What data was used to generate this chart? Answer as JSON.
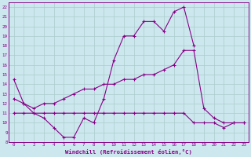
{
  "xlabel": "Windchill (Refroidissement éolien,°C)",
  "hours": [
    0,
    1,
    2,
    3,
    4,
    5,
    6,
    7,
    8,
    9,
    10,
    11,
    12,
    13,
    14,
    15,
    16,
    17,
    18,
    19,
    20,
    21,
    22,
    23
  ],
  "line_zigzag": [
    14.5,
    12.0,
    11.0,
    10.5,
    9.5,
    8.5,
    8.5,
    10.5,
    10.0,
    12.5,
    16.5,
    19.0,
    19.0,
    20.5,
    20.5,
    19.5,
    21.5,
    22.0,
    18.0,
    null,
    null,
    null,
    null,
    null
  ],
  "line_flat": [
    11.0,
    11.0,
    11.0,
    11.0,
    11.0,
    11.0,
    11.0,
    11.0,
    11.0,
    11.0,
    11.0,
    11.0,
    11.0,
    11.0,
    11.0,
    11.0,
    11.0,
    11.0,
    10.0,
    10.0,
    10.0,
    9.5,
    10.0,
    10.0
  ],
  "line_trend": [
    12.5,
    12.0,
    11.5,
    12.0,
    12.0,
    12.5,
    13.0,
    13.5,
    13.5,
    14.0,
    14.0,
    14.5,
    14.5,
    15.0,
    15.0,
    15.5,
    16.0,
    17.5,
    17.5,
    11.5,
    10.5,
    10.0,
    10.0,
    10.0
  ],
  "line_color": "#880088",
  "bg_color": "#cce8ee",
  "grid_color": "#aacccc",
  "ylim_min": 8,
  "ylim_max": 22,
  "xlim_min": 0,
  "xlim_max": 23
}
